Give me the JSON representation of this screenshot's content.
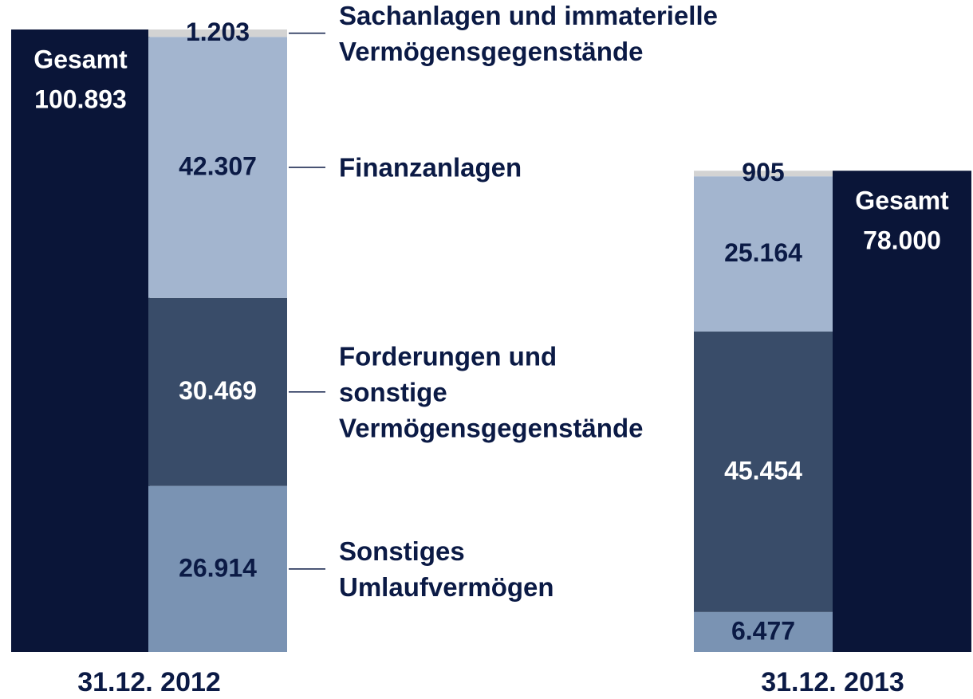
{
  "chart_data": {
    "type": "bar",
    "stacked": true,
    "categories": [
      "31.12. 2012",
      "31.12. 2013"
    ],
    "series": [
      {
        "name": "Sonstiges\nUmlaufvermögen",
        "color": "#7a93b3",
        "values": [
          26914,
          6477
        ],
        "value_labels": [
          "26.914",
          "6.477"
        ]
      },
      {
        "name": "Forderungen und\nsonstige\nVermögensgegenstände",
        "color": "#394c69",
        "values": [
          30469,
          45454
        ],
        "value_labels": [
          "30.469",
          "45.454"
        ]
      },
      {
        "name": "Finanzanlagen",
        "color": "#a3b5cf",
        "values": [
          42307,
          25164
        ],
        "value_labels": [
          "42.307",
          "25.164"
        ]
      },
      {
        "name": "Sachanlagen und immaterielle\nVermögensgegenstände",
        "color": "#d3d3d3",
        "values": [
          1203,
          905
        ],
        "value_labels": [
          "1.203",
          "905"
        ]
      }
    ],
    "total": {
      "name": "Gesamt",
      "color": "#0a1538",
      "values": [
        100893,
        78000
      ],
      "value_labels": [
        "100.893",
        "78.000"
      ]
    }
  }
}
